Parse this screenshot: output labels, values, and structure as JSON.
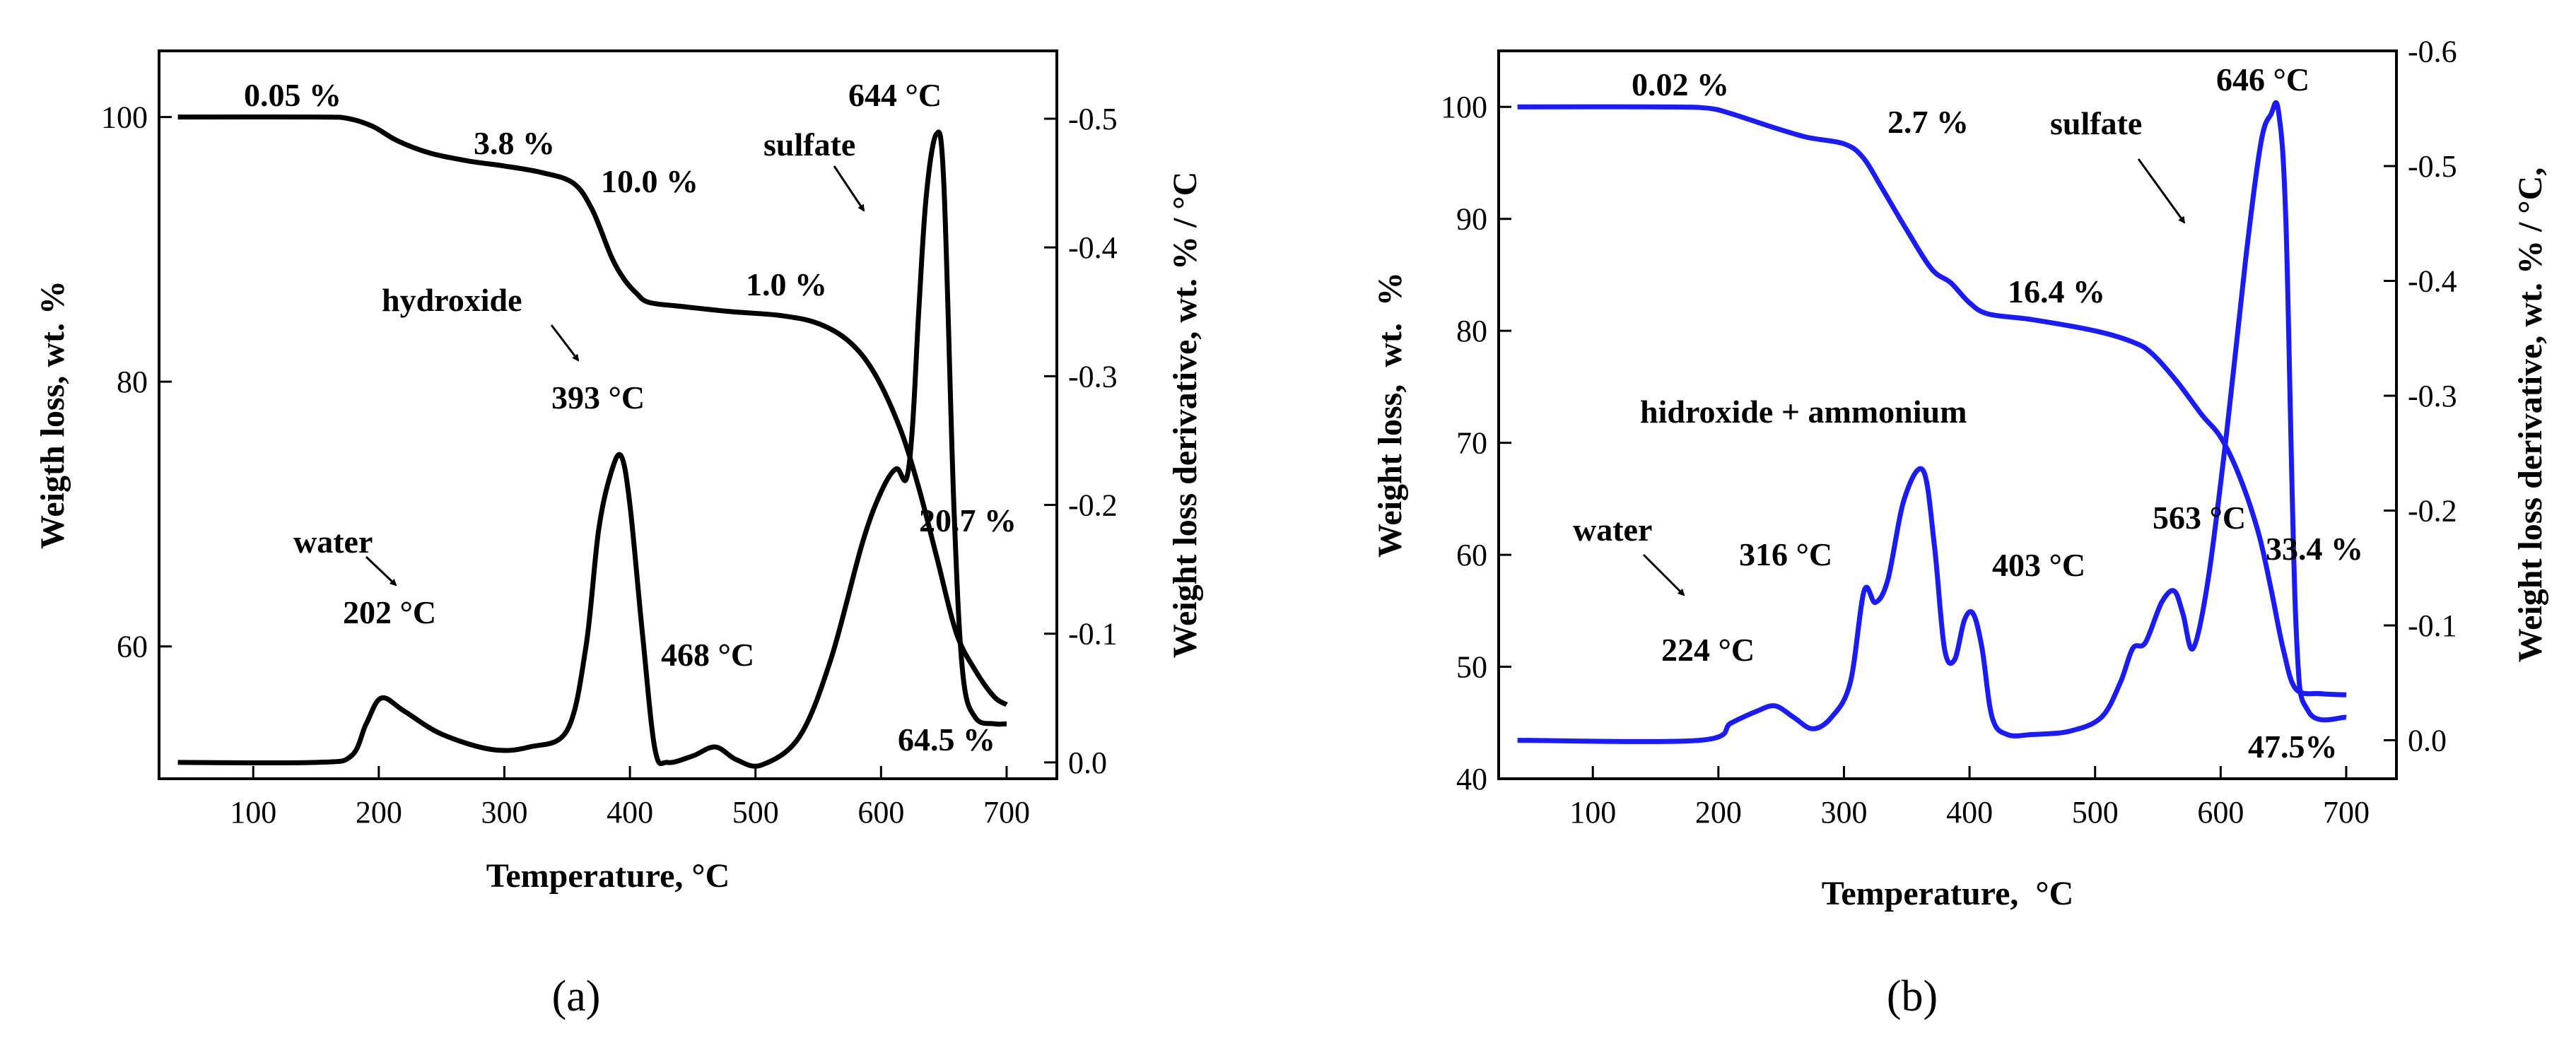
{
  "chart_data": [
    {
      "type": "line",
      "panel_label": "(a)",
      "line_color": "#000000",
      "xlabel": "Temperature, °C",
      "ylabel": "Weigth loss, wt. %",
      "y2label": "Weight loss derivative, wt. % / °C",
      "xlim": [
        25,
        740
      ],
      "ylim": [
        50,
        105
      ],
      "y2lim": [
        0.0127,
        -0.5527
      ],
      "x_ticks": [
        100,
        200,
        300,
        400,
        500,
        600,
        700
      ],
      "y_ticks": [
        60,
        80,
        100
      ],
      "y2_ticks": [
        0.0,
        -0.1,
        -0.2,
        -0.3,
        -0.4,
        -0.5
      ],
      "y2_tick_labels": [
        "0.0",
        "-0.1",
        "-0.2",
        "-0.3",
        "-0.4",
        "-0.5"
      ],
      "series": [
        {
          "name": "Weight loss",
          "axis": "left",
          "x": [
            40,
            150,
            175,
            195,
            215,
            240,
            270,
            300,
            330,
            355,
            370,
            385,
            395,
            405,
            415,
            440,
            480,
            520,
            550,
            575,
            595,
            615,
            630,
            645,
            660,
            675,
            690,
            700
          ],
          "y": [
            100,
            100,
            99.9,
            99.3,
            98.2,
            97.3,
            96.7,
            96.3,
            95.8,
            95.0,
            93.0,
            89.5,
            87.8,
            86.7,
            86.0,
            85.7,
            85.3,
            85.0,
            84.4,
            83.0,
            80.6,
            76.5,
            72.0,
            66.5,
            61.0,
            58.2,
            56.2,
            55.6
          ]
        },
        {
          "name": "Derivative",
          "axis": "right",
          "x": [
            40,
            150,
            178,
            190,
            202,
            220,
            250,
            290,
            320,
            350,
            365,
            375,
            385,
            393,
            400,
            410,
            420,
            430,
            450,
            468,
            485,
            505,
            535,
            560,
            585,
            600,
            612,
            620,
            625,
            630,
            636,
            644,
            650,
            658,
            665,
            675,
            690,
            700
          ],
          "y": [
            0.0,
            0.0,
            -0.005,
            -0.03,
            -0.05,
            -0.04,
            -0.022,
            -0.01,
            -0.012,
            -0.025,
            -0.09,
            -0.18,
            -0.225,
            -0.238,
            -0.2,
            -0.1,
            -0.01,
            0.0,
            -0.005,
            -0.012,
            -0.002,
            0.002,
            -0.02,
            -0.08,
            -0.17,
            -0.21,
            -0.228,
            -0.22,
            -0.26,
            -0.35,
            -0.44,
            -0.488,
            -0.45,
            -0.2,
            -0.07,
            -0.035,
            -0.03,
            -0.03
          ]
        }
      ],
      "annotations": {
        "a1": "0.05 %",
        "a2": "3.8 %",
        "a3": "10.0 %",
        "a4": "1.0 %",
        "a5": "sulfate",
        "a6": "644 °C",
        "a7": "hydroxide",
        "a8": "393 °C",
        "a9": "water",
        "a10": "202 °C",
        "a11": "468 °C",
        "a12": "20.7 %",
        "a13": "64.5 %"
      }
    },
    {
      "type": "line",
      "panel_label": "(b)",
      "line_color": "#1a1aff",
      "xlabel": "Temperature,  °C",
      "ylabel": "Weight loss,  wt.  %",
      "y2label": "Weight loss derivative, wt. % / °C,",
      "xlim": [
        25,
        740
      ],
      "ylim": [
        40,
        105
      ],
      "y2lim": [
        0.0335,
        -0.6003
      ],
      "x_ticks": [
        100,
        200,
        300,
        400,
        500,
        600,
        700
      ],
      "y_ticks": [
        40,
        50,
        60,
        70,
        80,
        90,
        100
      ],
      "y2_ticks": [
        0.0,
        -0.1,
        -0.2,
        -0.3,
        -0.4,
        -0.5,
        -0.6
      ],
      "y2_tick_labels": [
        "0.0",
        "-0.1",
        "-0.2",
        "-0.3",
        "-0.4",
        "-0.5",
        "-0.6"
      ],
      "series": [
        {
          "name": "Weight loss",
          "axis": "left",
          "x": [
            40,
            150,
            190,
            210,
            240,
            270,
            300,
            315,
            330,
            350,
            370,
            385,
            400,
            415,
            450,
            500,
            530,
            545,
            565,
            585,
            600,
            615,
            630,
            640,
            650,
            660,
            680,
            700
          ],
          "y": [
            100,
            100,
            99.9,
            99.4,
            98.3,
            97.3,
            96.7,
            95.5,
            92.8,
            89.0,
            85.5,
            84.3,
            82.5,
            81.5,
            81.0,
            80.0,
            79.0,
            78.0,
            75.5,
            72.5,
            70.5,
            67.0,
            62.0,
            57.0,
            51.5,
            48.0,
            47.6,
            47.5
          ]
        },
        {
          "name": "Derivative",
          "axis": "right",
          "x": [
            40,
            185,
            210,
            230,
            245,
            260,
            275,
            290,
            305,
            316,
            325,
            335,
            348,
            363,
            372,
            380,
            388,
            396,
            403,
            410,
            418,
            430,
            450,
            480,
            505,
            520,
            530,
            540,
            553,
            563,
            570,
            578,
            590,
            605,
            620,
            632,
            640,
            646,
            652,
            660,
            670,
            700
          ],
          "y": [
            0.0,
            0.0,
            -0.015,
            -0.025,
            -0.03,
            -0.02,
            -0.01,
            -0.02,
            -0.05,
            -0.13,
            -0.12,
            -0.14,
            -0.21,
            -0.235,
            -0.17,
            -0.08,
            -0.07,
            -0.105,
            -0.11,
            -0.08,
            -0.02,
            -0.005,
            -0.005,
            -0.008,
            -0.02,
            -0.05,
            -0.08,
            -0.085,
            -0.12,
            -0.13,
            -0.11,
            -0.08,
            -0.14,
            -0.27,
            -0.42,
            -0.52,
            -0.545,
            -0.548,
            -0.45,
            -0.1,
            -0.025,
            -0.02
          ]
        }
      ],
      "annotations": {
        "b1": "0.02 %",
        "b2": "2.7 %",
        "b3": "sulfate",
        "b4": "646 °C",
        "b5": "16.4 %",
        "b6": "hidroxide + ammonium",
        "b7": "water",
        "b8": "316 °C",
        "b9": "403 °C",
        "b10": "563 °C",
        "b11": "224 °C",
        "b12": "33.4 %",
        "b13": "47.5%"
      }
    }
  ]
}
